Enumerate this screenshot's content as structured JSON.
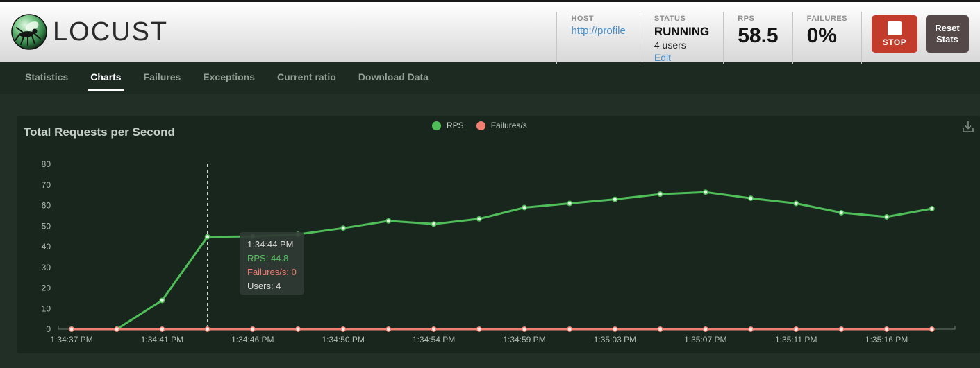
{
  "header": {
    "logo_text": "LOCUST",
    "host": {
      "label": "HOST",
      "value": "http://profile"
    },
    "status": {
      "label": "STATUS",
      "state": "RUNNING",
      "users": "4 users",
      "edit_label": "Edit"
    },
    "rps": {
      "label": "RPS",
      "value": "58.5"
    },
    "failures": {
      "label": "FAILURES",
      "value": "0%"
    },
    "stop_label": "STOP",
    "reset_label": "Reset Stats"
  },
  "nav": {
    "items": [
      {
        "label": "Statistics",
        "active": false
      },
      {
        "label": "Charts",
        "active": true
      },
      {
        "label": "Failures",
        "active": false
      },
      {
        "label": "Exceptions",
        "active": false
      },
      {
        "label": "Current ratio",
        "active": false
      },
      {
        "label": "Download Data",
        "active": false
      }
    ]
  },
  "chart_data": {
    "type": "line",
    "title": "Total Requests per Second",
    "x": [
      "1:34:37 PM",
      "1:34:39 PM",
      "1:34:41 PM",
      "1:34:44 PM",
      "1:34:46 PM",
      "1:34:48 PM",
      "1:34:50 PM",
      "1:34:52 PM",
      "1:34:54 PM",
      "1:34:57 PM",
      "1:34:59 PM",
      "1:35:01 PM",
      "1:35:03 PM",
      "1:35:05 PM",
      "1:35:07 PM",
      "1:35:09 PM",
      "1:35:11 PM",
      "1:35:13 PM",
      "1:35:16 PM",
      "1:35:18 PM"
    ],
    "x_tick_indices": [
      0,
      2,
      4,
      6,
      8,
      10,
      12,
      14,
      16,
      18
    ],
    "x_tick_labels": [
      "1:34:37 PM",
      "1:34:41 PM",
      "1:34:46 PM",
      "1:34:50 PM",
      "1:34:54 PM",
      "1:34:59 PM",
      "1:35:03 PM",
      "1:35:07 PM",
      "1:35:11 PM",
      "1:35:16 PM"
    ],
    "series": [
      {
        "name": "RPS",
        "color": "#4fbe58",
        "dot_fill": "#e2f6e2",
        "values": [
          0,
          0,
          14,
          44.8,
          45,
          46,
          49,
          52.5,
          51,
          53.5,
          59,
          61,
          63,
          65.5,
          66.5,
          63.5,
          61,
          56.5,
          54.5,
          58.5
        ]
      },
      {
        "name": "Failures/s",
        "color": "#f07f72",
        "dot_fill": "#fdeae7",
        "values": [
          0,
          0,
          0,
          0,
          0,
          0,
          0,
          0,
          0,
          0,
          0,
          0,
          0,
          0,
          0,
          0,
          0,
          0,
          0,
          0
        ]
      }
    ],
    "ylim": [
      0,
      80
    ],
    "y_ticks": [
      0,
      10,
      20,
      30,
      40,
      50,
      60,
      70,
      80
    ],
    "grid": false,
    "legend_position": "top-center",
    "tooltip": {
      "index": 3,
      "time": "1:34:44 PM",
      "rps_line": "RPS: 44.8",
      "failures_line": "Failures/s: 0",
      "users_line": "Users: 4"
    }
  },
  "colors": {
    "accent_green": "#4fbe58",
    "accent_red": "#f07f72",
    "stop_red": "#c23b2b",
    "reset_gray": "#554848",
    "link_blue": "#4a8fc7",
    "panel_bg": "#18261d",
    "page_bg": "#212f26",
    "nav_bg": "#1c2a21",
    "axis_text": "#b4bdb5"
  }
}
